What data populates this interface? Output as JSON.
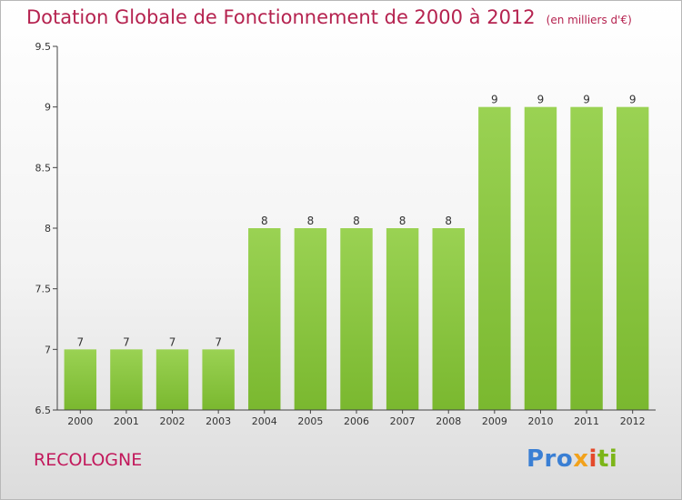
{
  "header": {
    "title": "Dotation Globale de Fonctionnement de 2000 à 2012",
    "unit": "(en milliers d'€)"
  },
  "footer": {
    "commune": "RECOLOGNE",
    "logo": {
      "p1": "Pro",
      "p2": "x",
      "p3": "i",
      "p4": "ti"
    }
  },
  "chart_data": {
    "type": "bar",
    "title": "Dotation Globale de Fonctionnement de 2000 à 2012",
    "subtitle": "(en milliers d'€)",
    "categories": [
      "2000",
      "2001",
      "2002",
      "2003",
      "2004",
      "2005",
      "2006",
      "2007",
      "2008",
      "2009",
      "2010",
      "2011",
      "2012"
    ],
    "values": [
      7,
      7,
      7,
      7,
      8,
      8,
      8,
      8,
      8,
      9,
      9,
      9,
      9
    ],
    "data_labels": [
      "7",
      "7",
      "7",
      "7",
      "8",
      "8",
      "8",
      "8",
      "8",
      "9",
      "9",
      "9",
      "9"
    ],
    "ylim": [
      6.5,
      9.5
    ],
    "yticks": [
      6.5,
      7,
      7.5,
      8,
      8.5,
      9,
      9.5
    ],
    "ytick_labels": [
      "6.5",
      "7",
      "7.5",
      "8",
      "8.5",
      "9",
      "9.5"
    ],
    "grid": false,
    "bar_color": "#7ab82f",
    "bar_color_light": "#9ad253",
    "axis_color": "#444444",
    "label_color": "#333333"
  }
}
